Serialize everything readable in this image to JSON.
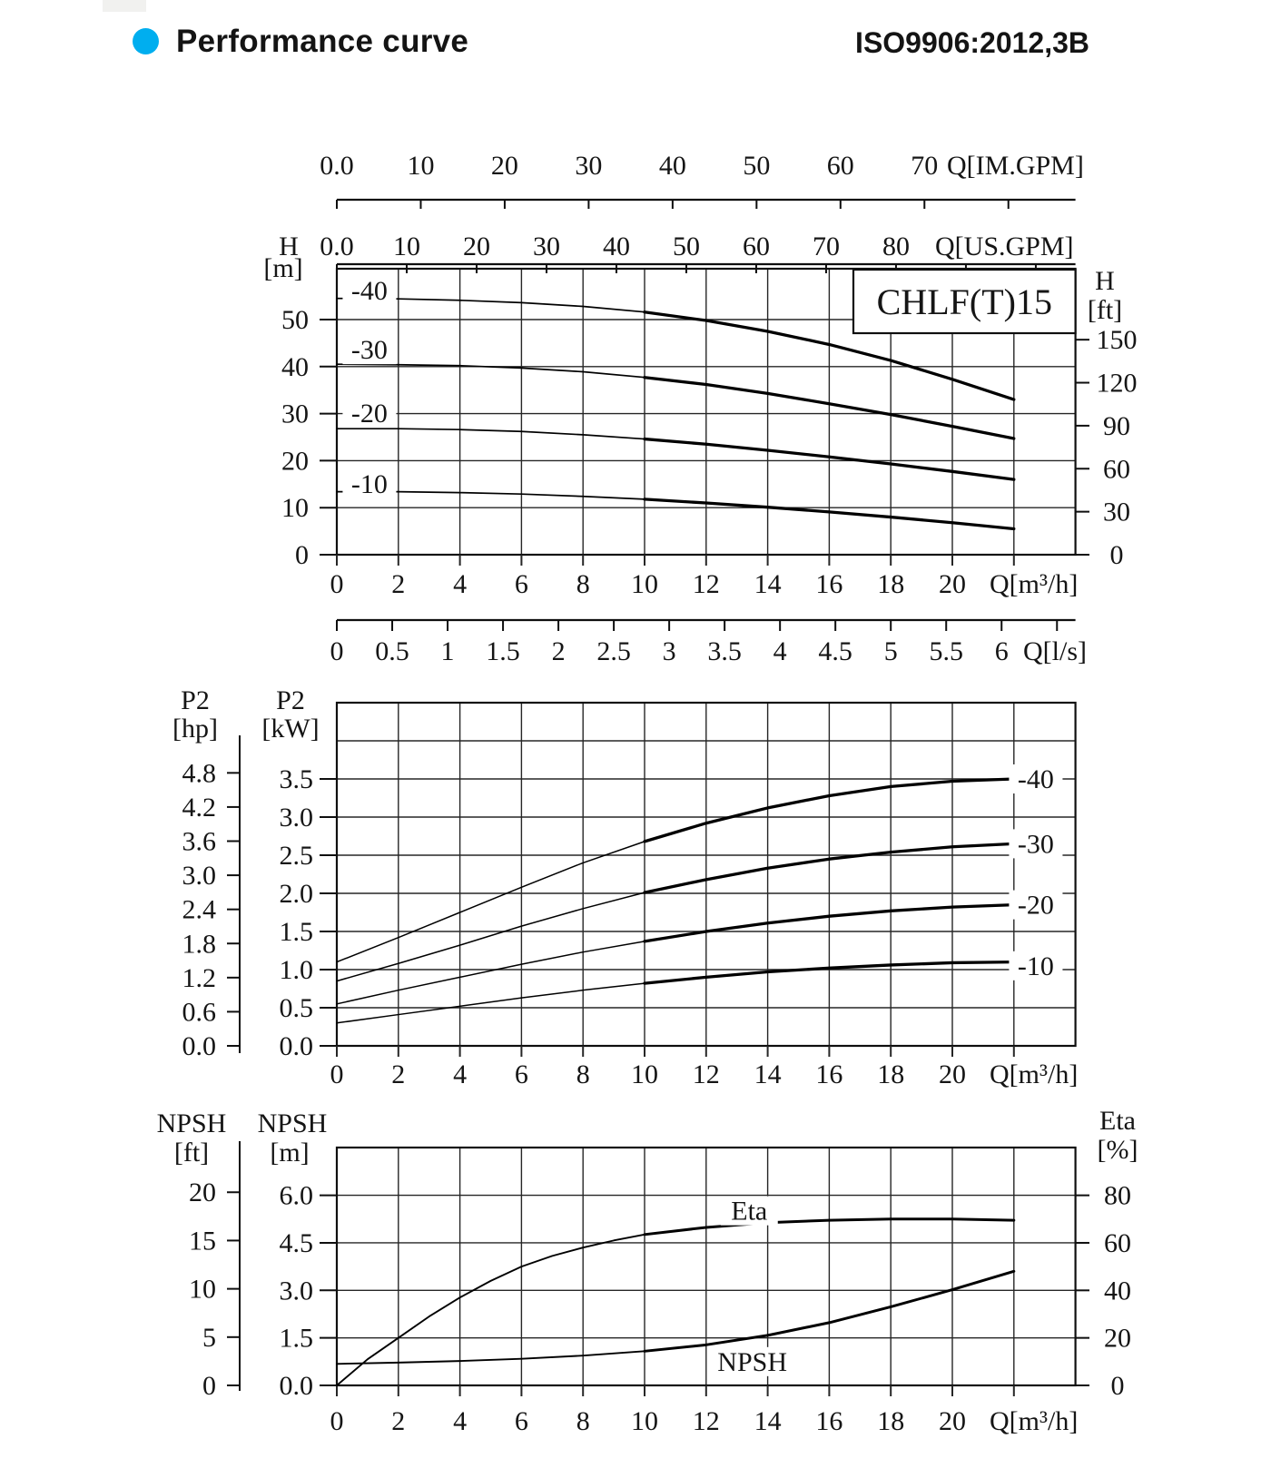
{
  "header": {
    "title": "Performance curve",
    "standard": "ISO9906:2012,3B",
    "bullet_color": "#00AEEF"
  },
  "chart_data": [
    {
      "type": "line",
      "title": "CHLF(T)15",
      "x_range_m3h": [
        0,
        24
      ],
      "x_grid_step": 2,
      "ylim_m": [
        0,
        60.8
      ],
      "grid": "on",
      "axes": {
        "top_im_gpm": {
          "label": "Q[IM.GPM]",
          "to_m3h": 0.272765,
          "ticks": [
            0,
            10,
            20,
            30,
            40,
            50,
            60,
            70,
            80
          ],
          "tick_labels": [
            "0.0",
            "10",
            "20",
            "30",
            "40",
            "50",
            "60",
            "70",
            ""
          ]
        },
        "top_us_gpm": {
          "label": "Q[US.GPM]",
          "to_m3h": 0.227124,
          "ticks": [
            0,
            10,
            20,
            30,
            40,
            50,
            60,
            70,
            80,
            90,
            100
          ],
          "tick_labels": [
            "0.0",
            "10",
            "20",
            "30",
            "40",
            "50",
            "60",
            "70",
            "80",
            "",
            ""
          ]
        },
        "bottom_m3h": {
          "label": "Q[m³/h]",
          "to_m3h": 1,
          "ticks": [
            0,
            2,
            4,
            6,
            8,
            10,
            12,
            14,
            16,
            18,
            20,
            22
          ],
          "tick_labels": [
            "0",
            "2",
            "4",
            "6",
            "8",
            "10",
            "12",
            "14",
            "16",
            "18",
            "20",
            ""
          ]
        },
        "bottom_ls": {
          "label": "Q[l/s]",
          "to_m3h": 3.6,
          "ticks": [
            0,
            0.5,
            1,
            1.5,
            2,
            2.5,
            3,
            3.5,
            4,
            4.5,
            5,
            5.5,
            6,
            6.5
          ],
          "tick_labels": [
            "0",
            "0.5",
            "1",
            "1.5",
            "2",
            "2.5",
            "3",
            "3.5",
            "4",
            "4.5",
            "5",
            "5.5",
            "6",
            ""
          ]
        },
        "left_h_m": {
          "title": [
            "H",
            "[m]"
          ],
          "ticks": [
            0,
            10,
            20,
            30,
            40,
            50
          ],
          "tick_labels": [
            "0",
            "10",
            "20",
            "30",
            "40",
            "50"
          ]
        },
        "right_h_ft": {
          "title": [
            "H",
            "[ft]"
          ],
          "to_m": 0.3048,
          "ticks": [
            0,
            30,
            60,
            90,
            120,
            150
          ],
          "tick_labels": [
            "0",
            "30",
            "60",
            "90",
            "120",
            "150"
          ]
        }
      },
      "series": [
        {
          "name": "-40",
          "label_at": [
            1.06,
            56.2
          ],
          "points": [
            [
              0,
              54.5
            ],
            [
              2,
              54.4
            ],
            [
              4,
              54.1
            ],
            [
              6,
              53.6
            ],
            [
              8,
              52.8
            ],
            [
              10,
              51.6
            ],
            [
              12,
              49.8
            ],
            [
              14,
              47.5
            ],
            [
              16,
              44.7
            ],
            [
              18,
              41.3
            ],
            [
              20,
              37.3
            ],
            [
              22,
              33
            ]
          ]
        },
        {
          "name": "-30",
          "label_at": [
            1.06,
            43.6
          ],
          "points": [
            [
              0,
              40.5
            ],
            [
              2,
              40.4
            ],
            [
              4,
              40.2
            ],
            [
              6,
              39.7
            ],
            [
              8,
              38.9
            ],
            [
              10,
              37.7
            ],
            [
              12,
              36.2
            ],
            [
              14,
              34.3
            ],
            [
              16,
              32.1
            ],
            [
              18,
              29.8
            ],
            [
              20,
              27.3
            ],
            [
              22,
              24.7
            ]
          ]
        },
        {
          "name": "-20",
          "label_at": [
            1.06,
            30.1
          ],
          "points": [
            [
              0,
              26.8
            ],
            [
              2,
              26.8
            ],
            [
              4,
              26.6
            ],
            [
              6,
              26.2
            ],
            [
              8,
              25.5
            ],
            [
              10,
              24.6
            ],
            [
              12,
              23.5
            ],
            [
              14,
              22.2
            ],
            [
              16,
              20.8
            ],
            [
              18,
              19.3
            ],
            [
              20,
              17.7
            ],
            [
              22,
              16
            ]
          ]
        },
        {
          "name": "-10",
          "label_at": [
            1.06,
            15.1
          ],
          "points": [
            [
              0,
              13.4
            ],
            [
              2,
              13.4
            ],
            [
              4,
              13.2
            ],
            [
              6,
              12.9
            ],
            [
              8,
              12.4
            ],
            [
              10,
              11.8
            ],
            [
              12,
              11
            ],
            [
              14,
              10.1
            ],
            [
              16,
              9.1
            ],
            [
              18,
              8
            ],
            [
              20,
              6.8
            ],
            [
              22,
              5.5
            ]
          ]
        }
      ]
    },
    {
      "type": "line",
      "title": "",
      "x_range_m3h": [
        0,
        24
      ],
      "x_grid_step": 2,
      "ylim_kw": [
        0,
        4.5
      ],
      "grid": "on",
      "axes": {
        "bottom_m3h": {
          "label": "Q[m³/h]",
          "to_m3h": 1,
          "ticks": [
            0,
            2,
            4,
            6,
            8,
            10,
            12,
            14,
            16,
            18,
            20,
            22
          ],
          "tick_labels": [
            "0",
            "2",
            "4",
            "6",
            "8",
            "10",
            "12",
            "14",
            "16",
            "18",
            "20",
            ""
          ]
        },
        "left_kw": {
          "title": [
            "P2",
            "[kW]"
          ],
          "ticks": [
            0,
            0.5,
            1,
            1.5,
            2,
            2.5,
            3,
            3.5
          ],
          "tick_labels": [
            "0.0",
            "0.5",
            "1.0",
            "1.5",
            "2.0",
            "2.5",
            "3.0",
            "3.5"
          ]
        },
        "ruler_hp": {
          "title": [
            "P2",
            "[hp]"
          ],
          "to_kw": 0.7457,
          "ticks": [
            0,
            0.6,
            1.2,
            1.8,
            2.4,
            3.0,
            3.6,
            4.2,
            4.8
          ],
          "tick_labels": [
            "0.0",
            "0.6",
            "1.2",
            "1.8",
            "2.4",
            "3.0",
            "3.6",
            "4.2",
            "4.8"
          ]
        }
      },
      "series": [
        {
          "name": "-40",
          "label_at": [
            22.7,
            3.5
          ],
          "points": [
            [
              0,
              1.1
            ],
            [
              2,
              1.42
            ],
            [
              4,
              1.75
            ],
            [
              6,
              2.08
            ],
            [
              8,
              2.4
            ],
            [
              10,
              2.68
            ],
            [
              12,
              2.92
            ],
            [
              14,
              3.12
            ],
            [
              16,
              3.28
            ],
            [
              18,
              3.4
            ],
            [
              20,
              3.47
            ],
            [
              22,
              3.5
            ]
          ]
        },
        {
          "name": "-30",
          "label_at": [
            22.7,
            2.65
          ],
          "points": [
            [
              0,
              0.85
            ],
            [
              2,
              1.08
            ],
            [
              4,
              1.32
            ],
            [
              6,
              1.57
            ],
            [
              8,
              1.8
            ],
            [
              10,
              2.01
            ],
            [
              12,
              2.18
            ],
            [
              14,
              2.33
            ],
            [
              16,
              2.45
            ],
            [
              18,
              2.54
            ],
            [
              20,
              2.61
            ],
            [
              22,
              2.65
            ]
          ]
        },
        {
          "name": "-20",
          "label_at": [
            22.7,
            1.85
          ],
          "points": [
            [
              0,
              0.55
            ],
            [
              2,
              0.73
            ],
            [
              4,
              0.9
            ],
            [
              6,
              1.07
            ],
            [
              8,
              1.23
            ],
            [
              10,
              1.37
            ],
            [
              12,
              1.5
            ],
            [
              14,
              1.61
            ],
            [
              16,
              1.7
            ],
            [
              18,
              1.77
            ],
            [
              20,
              1.82
            ],
            [
              22,
              1.85
            ]
          ]
        },
        {
          "name": "-10",
          "label_at": [
            22.7,
            1.05
          ],
          "points": [
            [
              0,
              0.3
            ],
            [
              2,
              0.41
            ],
            [
              4,
              0.52
            ],
            [
              6,
              0.63
            ],
            [
              8,
              0.73
            ],
            [
              10,
              0.82
            ],
            [
              12,
              0.9
            ],
            [
              14,
              0.97
            ],
            [
              16,
              1.02
            ],
            [
              18,
              1.06
            ],
            [
              20,
              1.09
            ],
            [
              22,
              1.1
            ]
          ]
        }
      ]
    },
    {
      "type": "line",
      "title": "",
      "x_range_m3h": [
        0,
        24
      ],
      "x_grid_step": 2,
      "ylim_npsh_m": [
        0,
        7.5
      ],
      "ylim_eta_pct": [
        0,
        100
      ],
      "grid": "on",
      "axes": {
        "bottom_m3h": {
          "label": "Q[m³/h]",
          "to_m3h": 1,
          "ticks": [
            0,
            2,
            4,
            6,
            8,
            10,
            12,
            14,
            16,
            18,
            20,
            22
          ],
          "tick_labels": [
            "0",
            "2",
            "4",
            "6",
            "8",
            "10",
            "12",
            "14",
            "16",
            "18",
            "20",
            ""
          ]
        },
        "left_npsh_m": {
          "title": [
            "NPSH",
            "[m]"
          ],
          "ticks": [
            0,
            1.5,
            3,
            4.5,
            6
          ],
          "tick_labels": [
            "0.0",
            "1.5",
            "3.0",
            "4.5",
            "6.0"
          ]
        },
        "ruler_npsh_ft": {
          "title": [
            "NPSH",
            "[ft]"
          ],
          "to_m": 0.3048,
          "ticks": [
            0,
            5,
            10,
            15,
            20
          ],
          "tick_labels": [
            "0",
            "5",
            "10",
            "15",
            "20"
          ]
        },
        "right_eta": {
          "title": [
            "Eta",
            "[%]"
          ],
          "ticks": [
            0,
            20,
            40,
            60,
            80
          ],
          "tick_labels": [
            "0",
            "20",
            "40",
            "60",
            "80"
          ]
        }
      },
      "series": [
        {
          "name": "Eta",
          "scale": "pct",
          "label_at": [
            13.4,
            73.5
          ],
          "points": [
            [
              0,
              0
            ],
            [
              1,
              11
            ],
            [
              2,
              20
            ],
            [
              3,
              29
            ],
            [
              4,
              37
            ],
            [
              5,
              44
            ],
            [
              6,
              50
            ],
            [
              7,
              54.5
            ],
            [
              8,
              58
            ],
            [
              9,
              61
            ],
            [
              10,
              63.5
            ],
            [
              12,
              66.5
            ],
            [
              14,
              68.5
            ],
            [
              16,
              69.5
            ],
            [
              18,
              70
            ],
            [
              20,
              70
            ],
            [
              22,
              69.5
            ]
          ]
        },
        {
          "name": "NPSH",
          "scale": "m",
          "label_at": [
            13.5,
            0.75
          ],
          "points": [
            [
              0,
              0.68
            ],
            [
              2,
              0.72
            ],
            [
              4,
              0.77
            ],
            [
              6,
              0.84
            ],
            [
              8,
              0.94
            ],
            [
              10,
              1.08
            ],
            [
              12,
              1.28
            ],
            [
              14,
              1.58
            ],
            [
              16,
              1.98
            ],
            [
              18,
              2.48
            ],
            [
              20,
              3.02
            ],
            [
              22,
              3.6
            ]
          ]
        }
      ]
    }
  ]
}
